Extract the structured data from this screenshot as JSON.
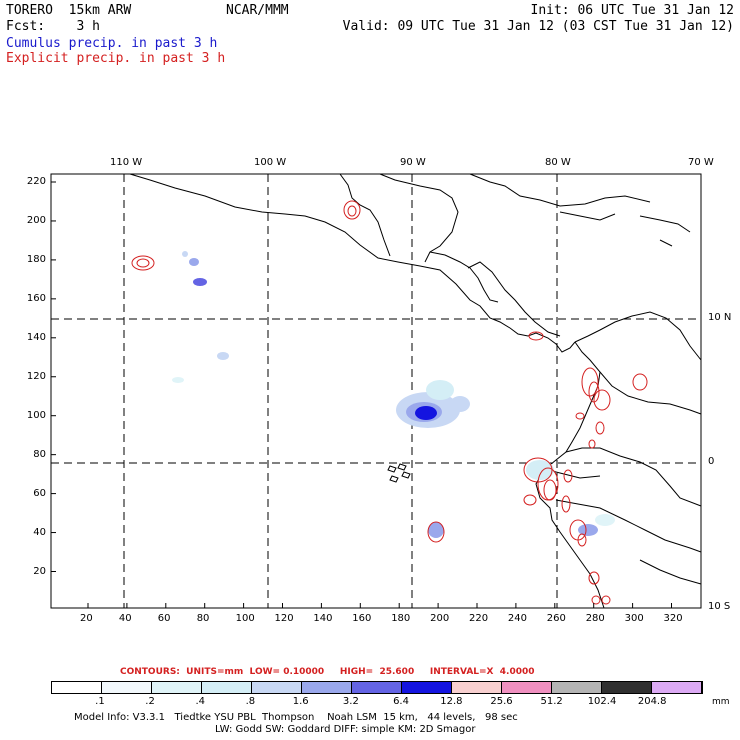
{
  "header": {
    "model": "TORERO  15km ARW",
    "center": "NCAR/MMM",
    "init": "Init: 06 UTC Tue 31 Jan 12",
    "fcst": "Fcst:    3 h",
    "valid": "Valid: 09 UTC Tue 31 Jan 12 (03 CST Tue 31 Jan 12)",
    "cumulus": "Cumulus precip. in past 3 h",
    "explicit": "Explicit precip. in past 3 h"
  },
  "colors": {
    "cumulus": "#1a1acc",
    "explicit": "#d42020"
  },
  "top_lon_labels": [
    "110 W",
    "100 W",
    "90 W",
    "80 W",
    "70 W"
  ],
  "right_lat_labels": [
    "10 N",
    "0",
    "10 S"
  ],
  "y_ticks": [
    "220",
    "200",
    "180",
    "160",
    "140",
    "120",
    "100",
    "80",
    "60",
    "40",
    "20"
  ],
  "x_ticks": [
    "20",
    "40",
    "60",
    "80",
    "100",
    "120",
    "140",
    "160",
    "180",
    "200",
    "220",
    "240",
    "260",
    "280",
    "300",
    "320"
  ],
  "contours_info": "CONTOURS:  UNITS=mm  LOW= 0.10000     HIGH=  25.600     INTERVAL=X  4.0000",
  "colorbar": {
    "units": "mm",
    "labels": [
      ".1",
      ".2",
      ".4",
      ".8",
      "1.6",
      "3.2",
      "6.4",
      "12.8",
      "25.6",
      "51.2",
      "102.4",
      "204.8"
    ],
    "colors": [
      "#ffffff",
      "#f2f8fc",
      "#e0f4f8",
      "#d4eef6",
      "#c8d8f4",
      "#9aa8ec",
      "#6464e4",
      "#1414e0",
      "#f8d0d0",
      "#f090c0",
      "#b4b4b4",
      "#303030",
      "#dcaaf4"
    ]
  },
  "footer": {
    "line1": "Model Info: V3.3.1   Tiedtke YSU PBL  Thompson    Noah LSM  15 km,   44 levels,   98 sec",
    "line2": "LW: Godd SW: Goddard DIFF: simple KM: 2D Smagor"
  }
}
